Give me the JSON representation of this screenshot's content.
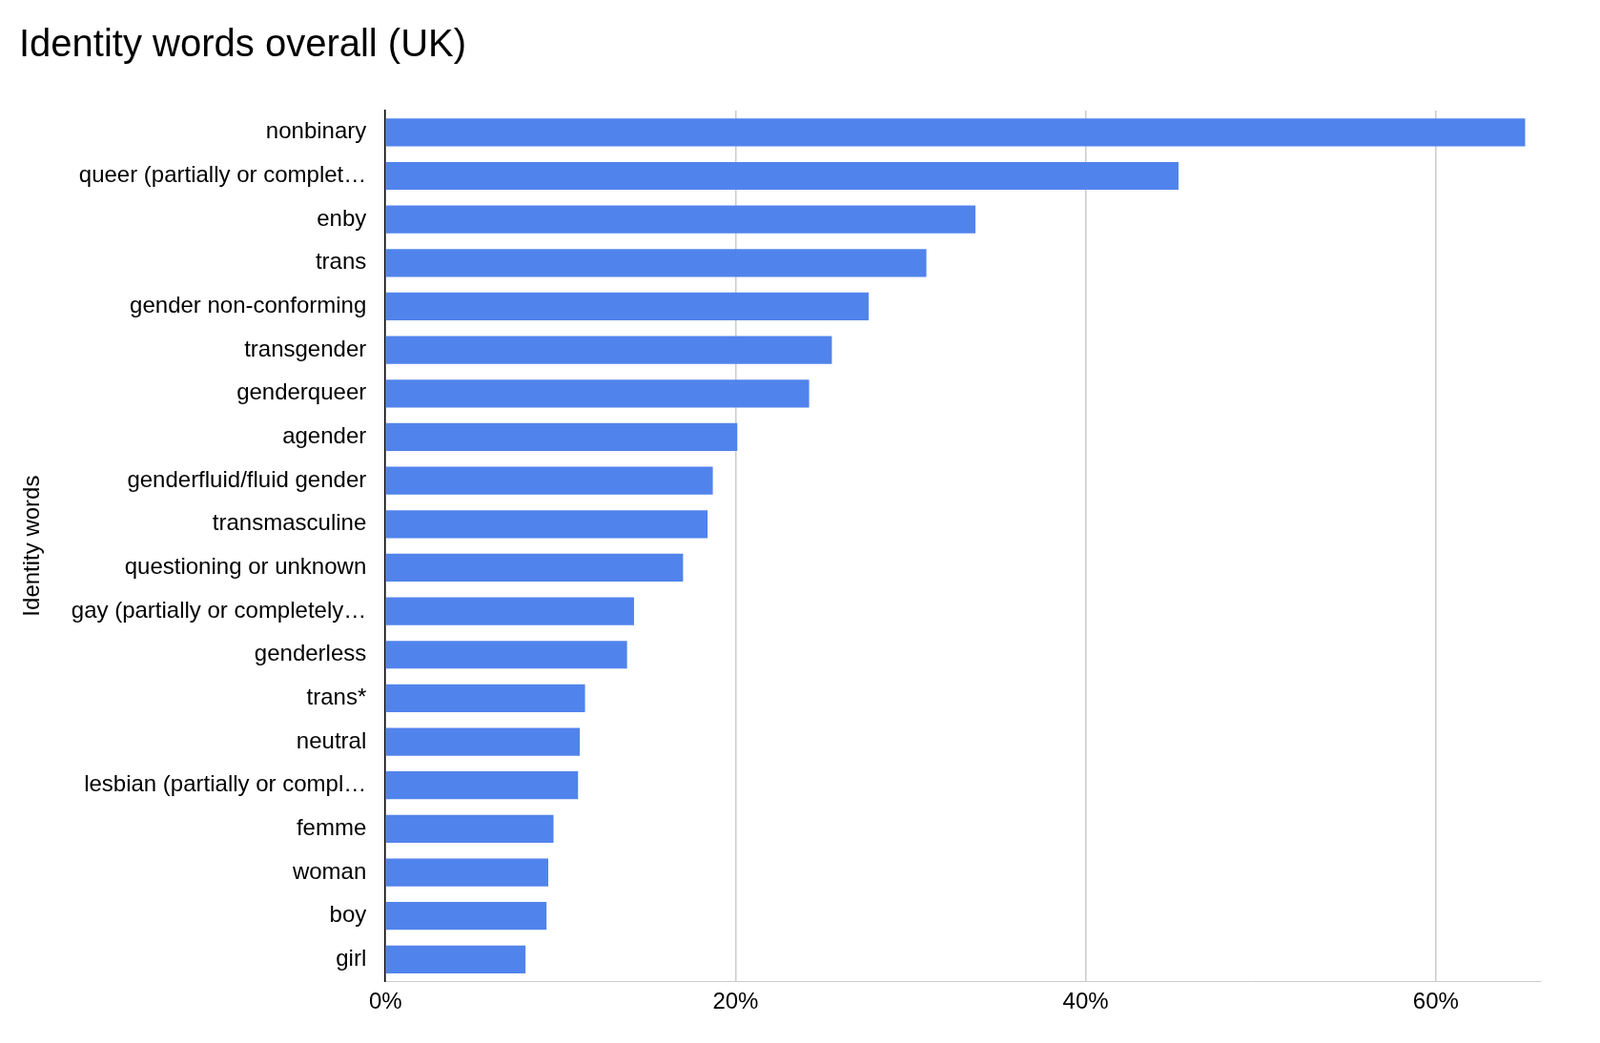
{
  "chart_data": {
    "type": "bar",
    "title": "Identity words overall (UK)",
    "y_label": "Identity words",
    "orientation": "horizontal",
    "categories": [
      "nonbinary",
      "queer (partially or complet…",
      "enby",
      "trans",
      "gender non-conforming",
      "transgender",
      "genderqueer",
      "agender",
      "genderfluid/fluid gender",
      "transmasculine",
      "questioning or unknown",
      "gay (partially or completely…",
      "genderless",
      "trans*",
      "neutral",
      "lesbian (partially or compl…",
      "femme",
      "woman",
      "boy",
      "girl"
    ],
    "values": [
      65.1,
      45.3,
      33.7,
      30.9,
      27.6,
      25.5,
      24.2,
      20.1,
      18.7,
      18.4,
      17.0,
      14.2,
      13.8,
      11.4,
      11.1,
      11.0,
      9.6,
      9.3,
      9.2,
      8.0
    ],
    "color": "#5183ec",
    "xlim": [
      0,
      66
    ],
    "xticks": [
      {
        "value": 0,
        "label": "0%"
      },
      {
        "value": 20,
        "label": "20%"
      },
      {
        "value": 40,
        "label": "40%"
      },
      {
        "value": 60,
        "label": "60%"
      }
    ],
    "grid": true
  }
}
